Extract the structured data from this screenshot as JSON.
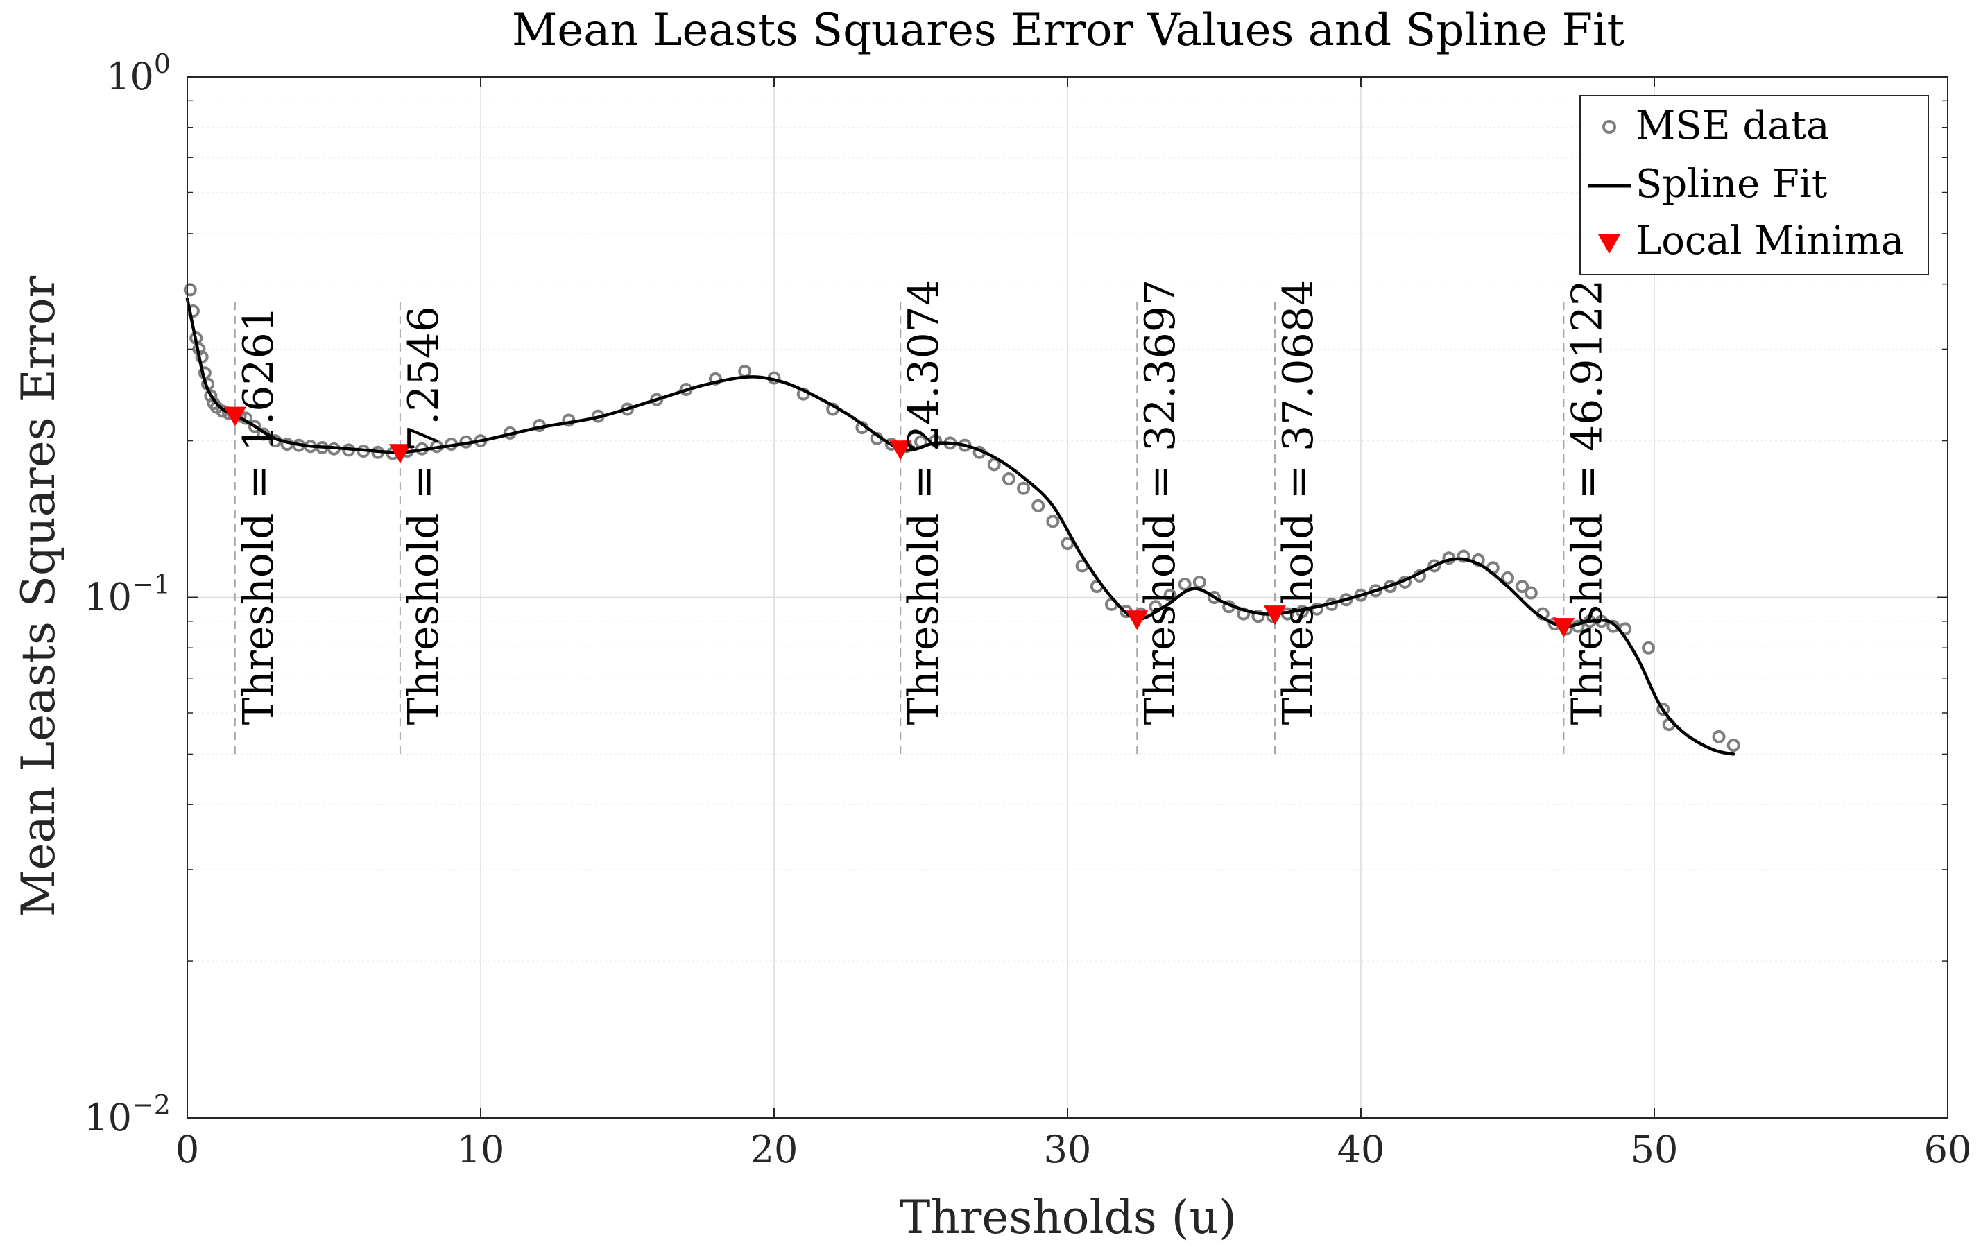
{
  "chart_data": {
    "type": "scatter",
    "title": "Mean Leasts Squares Error Values and Spline Fit",
    "xlabel": "Thresholds (u)",
    "ylabel": "Mean Leasts Squares Error",
    "xlim": [
      0,
      60
    ],
    "ylim": [
      0.01,
      1
    ],
    "yscale": "log",
    "grid": true,
    "legend_position": "top-right",
    "x_ticks": [
      0,
      10,
      20,
      30,
      40,
      50,
      60
    ],
    "x_tick_labels": [
      "0",
      "10",
      "20",
      "30",
      "40",
      "50",
      "60"
    ],
    "y_ticks": [
      0.01,
      0.1,
      1
    ],
    "y_tick_labels": [
      {
        "base": "10",
        "exp": "−2"
      },
      {
        "base": "10",
        "exp": "−1"
      },
      {
        "base": "10",
        "exp": "0"
      }
    ],
    "legend": [
      {
        "key": "mse",
        "label": "MSE data"
      },
      {
        "key": "spline",
        "label": "Spline Fit"
      },
      {
        "key": "minima",
        "label": "Local Minima"
      }
    ],
    "colors": {
      "mse": "#7f7f7f",
      "spline": "#000000",
      "minima": "#ff0000",
      "guide": "#a6a6a6",
      "grid": "#dcdcdc",
      "axis": "#262626"
    },
    "series": [
      {
        "name": "MSE data",
        "x": [
          0.1,
          0.2,
          0.3,
          0.4,
          0.5,
          0.6,
          0.7,
          0.8,
          0.9,
          1.0,
          1.2,
          1.4,
          1.6,
          1.8,
          2.0,
          2.3,
          2.6,
          3.0,
          3.4,
          3.8,
          4.2,
          4.6,
          5.0,
          5.5,
          6.0,
          6.5,
          7.0,
          7.5,
          8.0,
          8.5,
          9.0,
          9.5,
          10.0,
          11.0,
          12.0,
          13.0,
          14.0,
          15.0,
          16.0,
          17.0,
          18.0,
          19.0,
          20.0,
          21.0,
          22.0,
          23.0,
          23.5,
          24.0,
          24.5,
          25.0,
          25.5,
          26.0,
          26.5,
          27.0,
          27.5,
          28.0,
          28.5,
          29.0,
          29.5,
          30.0,
          30.5,
          31.0,
          31.5,
          32.0,
          32.5,
          33.0,
          33.5,
          34.0,
          34.5,
          35.0,
          35.5,
          36.0,
          36.5,
          37.0,
          37.5,
          38.0,
          38.5,
          39.0,
          39.5,
          40.0,
          40.5,
          41.0,
          41.5,
          42.0,
          42.5,
          43.0,
          43.5,
          44.0,
          44.5,
          45.0,
          45.5,
          45.8,
          46.2,
          46.6,
          47.0,
          47.4,
          47.8,
          48.2,
          48.6,
          49.0,
          49.8,
          50.3,
          50.5,
          52.2,
          52.7
        ],
        "y": [
          0.39,
          0.355,
          0.315,
          0.3,
          0.29,
          0.27,
          0.257,
          0.244,
          0.236,
          0.232,
          0.228,
          0.226,
          0.225,
          0.223,
          0.221,
          0.213,
          0.206,
          0.2,
          0.197,
          0.196,
          0.195,
          0.194,
          0.193,
          0.192,
          0.191,
          0.19,
          0.189,
          0.191,
          0.193,
          0.195,
          0.197,
          0.199,
          0.2,
          0.207,
          0.214,
          0.219,
          0.223,
          0.23,
          0.24,
          0.251,
          0.263,
          0.272,
          0.264,
          0.246,
          0.23,
          0.212,
          0.202,
          0.197,
          0.195,
          0.199,
          0.2,
          0.198,
          0.196,
          0.19,
          0.18,
          0.169,
          0.162,
          0.15,
          0.14,
          0.127,
          0.115,
          0.105,
          0.097,
          0.094,
          0.093,
          0.096,
          0.101,
          0.106,
          0.107,
          0.1,
          0.096,
          0.093,
          0.092,
          0.092,
          0.093,
          0.094,
          0.095,
          0.097,
          0.099,
          0.101,
          0.103,
          0.105,
          0.107,
          0.11,
          0.115,
          0.119,
          0.12,
          0.118,
          0.114,
          0.109,
          0.105,
          0.102,
          0.093,
          0.089,
          0.087,
          0.088,
          0.09,
          0.09,
          0.088,
          0.087,
          0.08,
          0.061,
          0.057,
          0.054,
          0.052
        ]
      },
      {
        "name": "Spline Fit",
        "x": [
          0,
          0.3,
          0.6,
          0.9,
          1.2,
          1.6261,
          2.2,
          3.0,
          4.0,
          5.0,
          6.0,
          7.2546,
          8.5,
          10.0,
          12.0,
          14.0,
          16.0,
          17.5,
          19.0,
          20.0,
          21.0,
          22.5,
          24.3074,
          25.5,
          26.5,
          27.5,
          28.5,
          29.5,
          30.5,
          31.5,
          32.3697,
          33.3,
          34.3,
          35.3,
          36.2,
          37.0684,
          38.5,
          40.0,
          41.5,
          43.0,
          44.0,
          45.0,
          46.0,
          46.9122,
          47.8,
          48.6,
          49.4,
          50.2,
          51.0,
          52.0,
          52.7
        ],
        "y": [
          0.375,
          0.31,
          0.26,
          0.24,
          0.23,
          0.224,
          0.215,
          0.202,
          0.196,
          0.194,
          0.192,
          0.19,
          0.194,
          0.2,
          0.212,
          0.222,
          0.24,
          0.255,
          0.265,
          0.262,
          0.25,
          0.225,
          0.193,
          0.198,
          0.196,
          0.186,
          0.17,
          0.15,
          0.12,
          0.1,
          0.091,
          0.096,
          0.104,
          0.098,
          0.094,
          0.093,
          0.096,
          0.101,
          0.108,
          0.118,
          0.116,
          0.105,
          0.093,
          0.088,
          0.09,
          0.089,
          0.077,
          0.062,
          0.055,
          0.051,
          0.05
        ]
      }
    ],
    "local_minima": [
      {
        "x": 1.6261,
        "y": 0.224,
        "label": "Threshold = 1.6261"
      },
      {
        "x": 7.2546,
        "y": 0.19,
        "label": "Threshold = 7.2546"
      },
      {
        "x": 24.3074,
        "y": 0.193,
        "label": "Threshold = 24.3074"
      },
      {
        "x": 32.3697,
        "y": 0.091,
        "label": "Threshold = 32.3697"
      },
      {
        "x": 37.0684,
        "y": 0.093,
        "label": "Threshold = 37.0684"
      },
      {
        "x": 46.9122,
        "y": 0.088,
        "label": "Threshold = 46.9122"
      }
    ],
    "guide_line_y_range": [
      0.05,
      0.37
    ]
  }
}
